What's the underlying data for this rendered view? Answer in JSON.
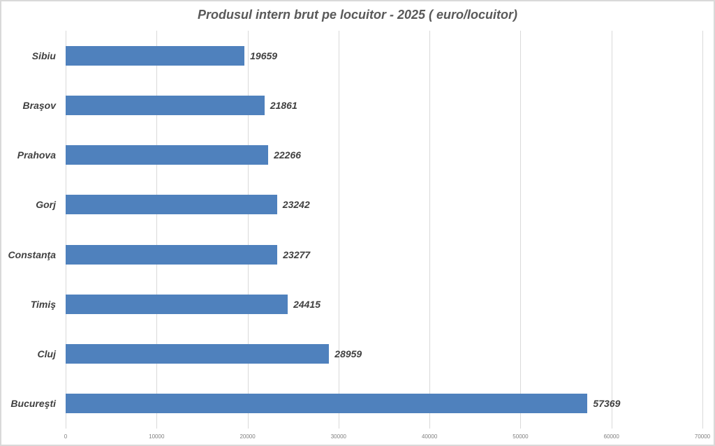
{
  "chart_data": {
    "type": "bar",
    "orientation": "horizontal",
    "title": "Produsul intern brut pe locuitor - 2025 ( euro/locuitor)",
    "categories": [
      "Sibiu",
      "Braşov",
      "Prahova",
      "Gorj",
      "Constanţa",
      "Timiş",
      "Cluj",
      "Bucureşti"
    ],
    "values": [
      19659,
      21861,
      22266,
      23242,
      23277,
      24415,
      28959,
      57369
    ],
    "data_labels": [
      "19659",
      "21861",
      "22266",
      "23242",
      "23277",
      "24415",
      "28959",
      "57369"
    ],
    "xlabel": "",
    "ylabel": "",
    "xlim": [
      0,
      70000
    ],
    "x_ticks": [
      0,
      10000,
      20000,
      30000,
      40000,
      50000,
      60000,
      70000
    ],
    "x_tick_labels": [
      "0",
      "10000",
      "20000",
      "30000",
      "40000",
      "50000",
      "60000",
      "70000"
    ],
    "grid": true,
    "legend": "none",
    "colors": {
      "bar": "#4f81bd",
      "title": "#595959",
      "label": "#404040",
      "tick": "#7f7f7f",
      "gridline": "#d9d9d9",
      "background": "#ffffff",
      "frame_border": "#d9d9d9"
    }
  }
}
